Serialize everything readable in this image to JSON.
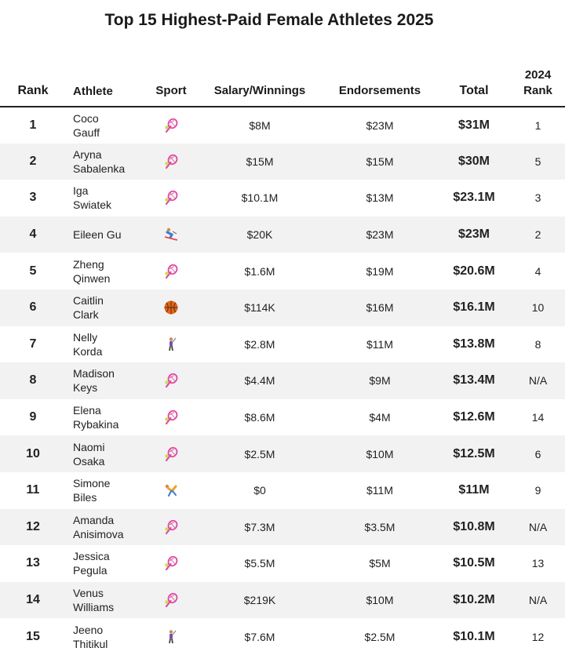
{
  "title": "Top 15 Highest-Paid Female Athletes 2025",
  "chart_data": {
    "type": "table",
    "columns": [
      "Rank",
      "Athlete",
      "Sport",
      "Salary/Winnings",
      "Endorsements",
      "Total",
      "2024 Rank"
    ],
    "rows": [
      {
        "rank": "1",
        "name": [
          "Coco",
          "Gauff"
        ],
        "sport": "tennis-icon",
        "salary": "$8M",
        "endorse": "$23M",
        "total": "$31M",
        "prev": "1"
      },
      {
        "rank": "2",
        "name": [
          "Aryna",
          "Sabalenka"
        ],
        "sport": "tennis-icon",
        "salary": "$15M",
        "endorse": "$15M",
        "total": "$30M",
        "prev": "5"
      },
      {
        "rank": "3",
        "name": [
          "Iga",
          "Swiatek"
        ],
        "sport": "tennis-icon",
        "salary": "$10.1M",
        "endorse": "$13M",
        "total": "$23.1M",
        "prev": "3"
      },
      {
        "rank": "4",
        "name": [
          "Eileen Gu",
          ""
        ],
        "sport": "skiing-icon",
        "salary": "$20K",
        "endorse": "$23M",
        "total": "$23M",
        "prev": "2"
      },
      {
        "rank": "5",
        "name": [
          "Zheng",
          "Qinwen"
        ],
        "sport": "tennis-icon",
        "salary": "$1.6M",
        "endorse": "$19M",
        "total": "$20.6M",
        "prev": "4"
      },
      {
        "rank": "6",
        "name": [
          "Caitlin",
          "Clark"
        ],
        "sport": "basketball-icon",
        "salary": "$114K",
        "endorse": "$16M",
        "total": "$16.1M",
        "prev": "10"
      },
      {
        "rank": "7",
        "name": [
          "Nelly",
          "Korda"
        ],
        "sport": "golf-icon",
        "salary": "$2.8M",
        "endorse": "$11M",
        "total": "$13.8M",
        "prev": "8"
      },
      {
        "rank": "8",
        "name": [
          "Madison",
          "Keys"
        ],
        "sport": "tennis-icon",
        "salary": "$4.4M",
        "endorse": "$9M",
        "total": "$13.4M",
        "prev": "N/A"
      },
      {
        "rank": "9",
        "name": [
          "Elena",
          "Rybakina"
        ],
        "sport": "tennis-icon",
        "salary": "$8.6M",
        "endorse": "$4M",
        "total": "$12.6M",
        "prev": "14"
      },
      {
        "rank": "10",
        "name": [
          "Naomi",
          "Osaka"
        ],
        "sport": "tennis-icon",
        "salary": "$2.5M",
        "endorse": "$10M",
        "total": "$12.5M",
        "prev": "6"
      },
      {
        "rank": "11",
        "name": [
          "Simone",
          "Biles"
        ],
        "sport": "gymnastics-icon",
        "salary": "$0",
        "endorse": "$11M",
        "total": "$11M",
        "prev": "9"
      },
      {
        "rank": "12",
        "name": [
          "Amanda",
          "Anisimova"
        ],
        "sport": "tennis-icon",
        "salary": "$7.3M",
        "endorse": "$3.5M",
        "total": "$10.8M",
        "prev": "N/A"
      },
      {
        "rank": "13",
        "name": [
          "Jessica",
          "Pegula"
        ],
        "sport": "tennis-icon",
        "salary": "$5.5M",
        "endorse": "$5M",
        "total": "$10.5M",
        "prev": "13"
      },
      {
        "rank": "14",
        "name": [
          "Venus",
          "Williams"
        ],
        "sport": "tennis-icon",
        "salary": "$219K",
        "endorse": "$10M",
        "total": "$10.2M",
        "prev": "N/A"
      },
      {
        "rank": "15",
        "name": [
          "Jeeno",
          "Thitikul"
        ],
        "sport": "golf-icon",
        "salary": "$7.6M",
        "endorse": "$2.5M",
        "total": "$10.1M",
        "prev": "12"
      }
    ]
  },
  "colors": {
    "header_rule": "#222222",
    "zebra": "#f2f2f2",
    "tennis": "#e04aa0",
    "basketball": "#e2661b",
    "golf": "#7a4fb0",
    "skiing": "#3a7bd5",
    "gymnastics": "#f0a020"
  }
}
